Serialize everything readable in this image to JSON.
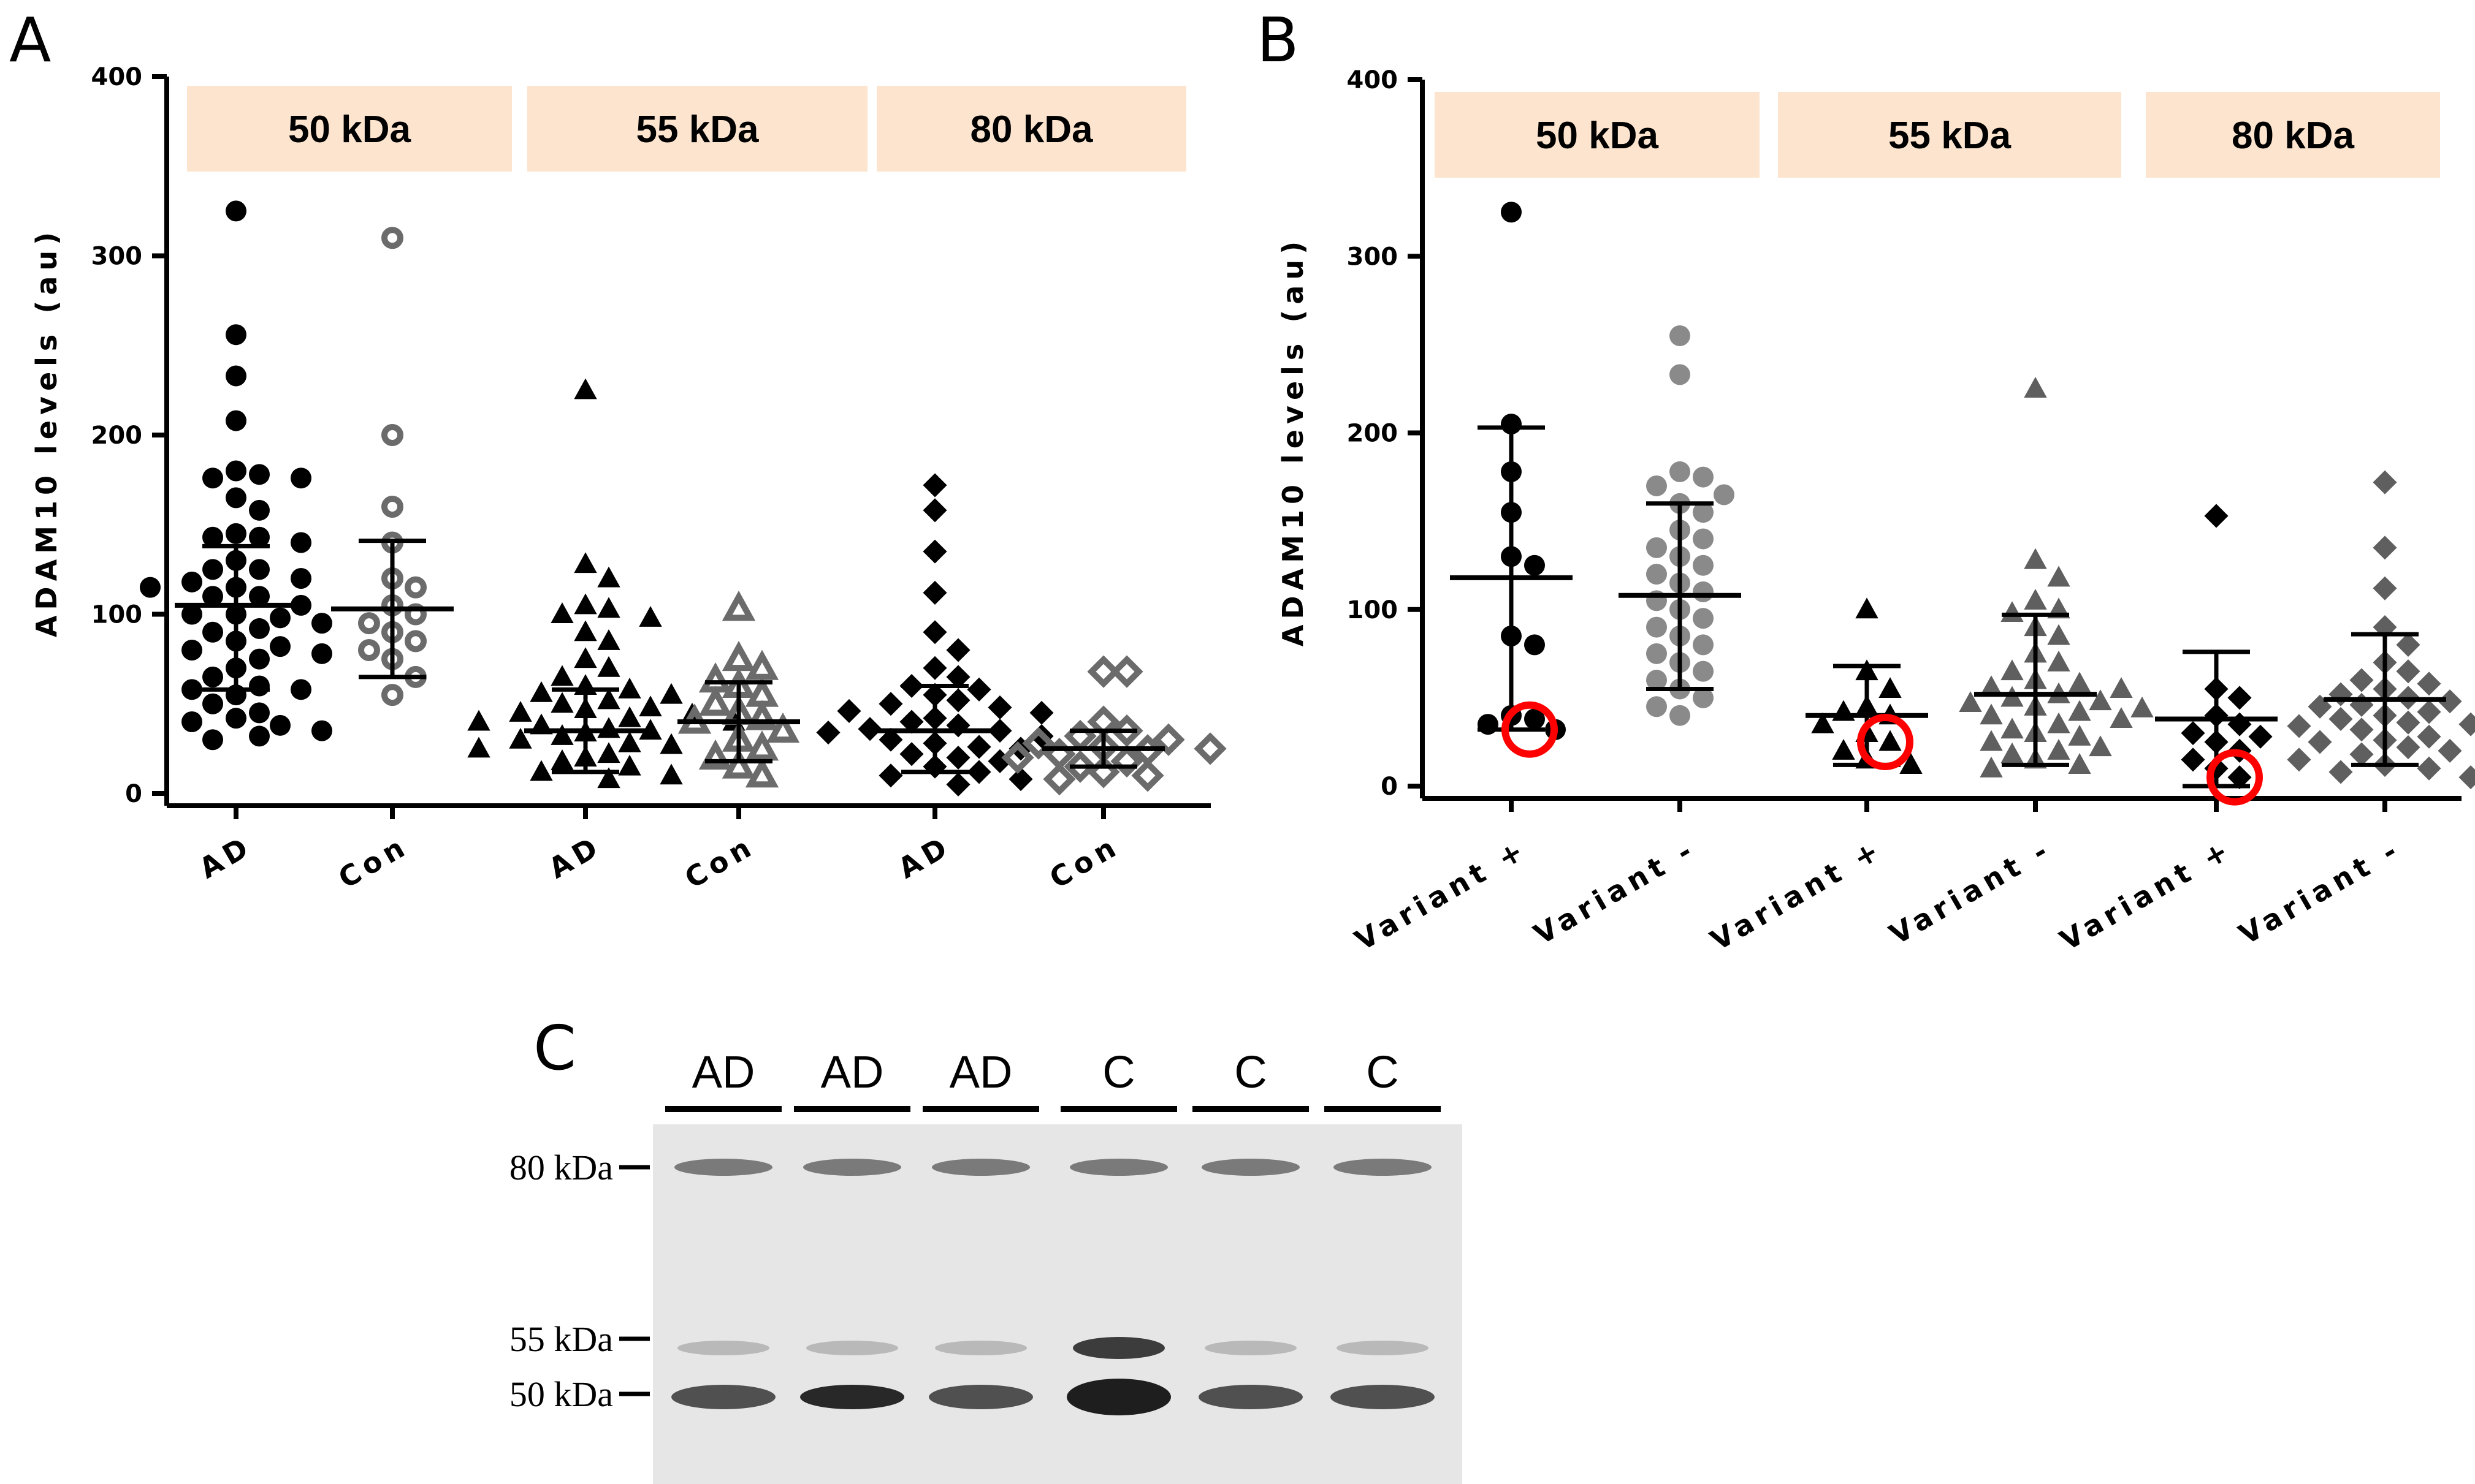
{
  "panels": {
    "A": {
      "letter": "A",
      "ylabel": "ADAM10 levels (au)"
    },
    "B": {
      "letter": "B",
      "ylabel": "ADAM10 levels (au)"
    },
    "C": {
      "letter": "C"
    }
  },
  "chart_data": [
    {
      "panel": "A",
      "type": "scatter",
      "ylabel": "ADAM10 levels (au)",
      "ylim": [
        0,
        400
      ],
      "yticks": [
        "0",
        "100",
        "200",
        "300",
        "400"
      ],
      "categories": [
        "AD",
        "Con",
        "AD",
        "Con",
        "AD",
        "Con"
      ],
      "band_groups": [
        "50 kDa",
        "55 kDa",
        "80 kDa"
      ],
      "band_color": "#fce4cf",
      "groups": [
        {
          "band": "50 kDa",
          "label": "AD",
          "marker": "circle",
          "fill": true,
          "color": "#000000",
          "mean": 105,
          "sd_low": 58,
          "sd_high": 138,
          "values": [
            325,
            256,
            233,
            208,
            180,
            178,
            176,
            176,
            165,
            158,
            145,
            143,
            143,
            140,
            130,
            125,
            125,
            120,
            118,
            115,
            115,
            110,
            110,
            105,
            100,
            100,
            98,
            95,
            92,
            90,
            85,
            82,
            80,
            78,
            75,
            70,
            65,
            60,
            58,
            58,
            55,
            50,
            45,
            42,
            40,
            38,
            35,
            32,
            30
          ]
        },
        {
          "band": "50 kDa",
          "label": "Con",
          "marker": "circle",
          "fill": false,
          "color": "#6b6b6b",
          "mean": 103,
          "sd_low": 65,
          "sd_high": 141,
          "values": [
            310,
            200,
            160,
            140,
            120,
            115,
            105,
            100,
            95,
            90,
            85,
            80,
            75,
            65,
            55
          ]
        },
        {
          "band": "55 kDa",
          "label": "AD",
          "marker": "triangle",
          "fill": true,
          "color": "#000000",
          "mean": 35,
          "sd_low": 12,
          "sd_high": 58,
          "values": [
            225,
            128,
            120,
            105,
            103,
            100,
            98,
            90,
            85,
            75,
            70,
            65,
            60,
            58,
            56,
            55,
            52,
            50,
            48,
            47,
            45,
            44,
            42,
            40,
            40,
            38,
            36,
            35,
            34,
            32,
            30,
            28,
            27,
            25,
            22,
            20,
            18,
            15,
            12,
            10,
            8
          ]
        },
        {
          "band": "55 kDa",
          "label": "Con",
          "marker": "triangle",
          "fill": false,
          "color": "#6b6b6b",
          "mean": 40,
          "sd_low": 18,
          "sd_high": 62,
          "values": [
            103,
            75,
            70,
            63,
            60,
            55,
            50,
            45,
            42,
            40,
            35,
            30,
            25,
            20,
            15,
            10
          ]
        },
        {
          "band": "80 kDa",
          "label": "AD",
          "marker": "diamond",
          "fill": true,
          "color": "#000000",
          "mean": 35,
          "sd_low": 12,
          "sd_high": 60,
          "values": [
            172,
            158,
            135,
            112,
            90,
            80,
            70,
            65,
            60,
            58,
            55,
            52,
            50,
            48,
            46,
            45,
            42,
            40,
            38,
            36,
            35,
            34,
            32,
            30,
            28,
            26,
            25,
            22,
            20,
            18,
            15,
            12,
            10,
            8,
            5
          ]
        },
        {
          "band": "80 kDa",
          "label": "Con",
          "marker": "diamond",
          "fill": false,
          "color": "#6b6b6b",
          "mean": 25,
          "sd_low": 15,
          "sd_high": 35,
          "values": [
            68,
            68,
            40,
            35,
            32,
            30,
            28,
            26,
            25,
            24,
            22,
            20,
            18,
            15,
            12,
            10,
            8
          ]
        }
      ]
    },
    {
      "panel": "B",
      "type": "scatter",
      "ylabel": "ADAM10 levels (au)",
      "ylim": [
        0,
        400
      ],
      "yticks": [
        "0",
        "100",
        "200",
        "300",
        "400"
      ],
      "categories": [
        "Variant +",
        "Variant -",
        "Variant +",
        "Variant -",
        "Variant +",
        "Variant -"
      ],
      "band_groups": [
        "50 kDa",
        "55 kDa",
        "80 kDa"
      ],
      "band_color": "#fce4cf",
      "highlight_color": "#ff0000",
      "groups": [
        {
          "band": "50 kDa",
          "label": "Variant +",
          "marker": "circle",
          "color": "#000000",
          "mean": 118,
          "sd_low": 32,
          "sd_high": 203,
          "highlight": 32,
          "values": [
            325,
            205,
            178,
            155,
            130,
            125,
            85,
            80,
            40,
            38,
            35,
            32
          ]
        },
        {
          "band": "50 kDa",
          "label": "Variant -",
          "marker": "circle",
          "color": "#8a8a8a",
          "mean": 108,
          "sd_low": 55,
          "sd_high": 160,
          "values": [
            255,
            233,
            178,
            175,
            170,
            165,
            160,
            155,
            145,
            140,
            135,
            130,
            125,
            120,
            115,
            110,
            105,
            100,
            95,
            90,
            85,
            80,
            75,
            70,
            65,
            60,
            55,
            50,
            45,
            40
          ]
        },
        {
          "band": "55 kDa",
          "label": "Variant +",
          "marker": "triangle",
          "color": "#000000",
          "mean": 40,
          "sd_low": 12,
          "sd_high": 68,
          "highlight": 25,
          "values": [
            100,
            65,
            55,
            45,
            42,
            40,
            35,
            30,
            25,
            20,
            15,
            12
          ]
        },
        {
          "band": "55 kDa",
          "label": "Variant -",
          "marker": "triangle",
          "color": "#5f5f5f",
          "mean": 52,
          "sd_low": 12,
          "sd_high": 97,
          "values": [
            225,
            128,
            118,
            105,
            100,
            98,
            90,
            85,
            75,
            70,
            65,
            60,
            58,
            56,
            55,
            52,
            50,
            48,
            47,
            45,
            44,
            42,
            40,
            38,
            35,
            32,
            30,
            28,
            25,
            22,
            20,
            18,
            15,
            12,
            10
          ]
        },
        {
          "band": "80 kDa",
          "label": "Variant +",
          "marker": "diamond",
          "color": "#000000",
          "mean": 38,
          "sd_low": 0,
          "sd_high": 76,
          "highlight": 5,
          "values": [
            153,
            55,
            50,
            40,
            35,
            30,
            28,
            25,
            20,
            15,
            10,
            5
          ]
        },
        {
          "band": "80 kDa",
          "label": "Variant -",
          "marker": "diamond",
          "color": "#5f5f5f",
          "mean": 49,
          "sd_low": 12,
          "sd_high": 86,
          "values": [
            172,
            135,
            112,
            90,
            80,
            70,
            65,
            60,
            58,
            55,
            52,
            50,
            48,
            46,
            45,
            42,
            40,
            38,
            36,
            35,
            34,
            32,
            30,
            28,
            26,
            25,
            22,
            20,
            18,
            15,
            12,
            10,
            8,
            5
          ]
        }
      ]
    }
  ],
  "blot": {
    "lanes": [
      "AD",
      "AD",
      "AD",
      "C",
      "C",
      "C"
    ],
    "markers": [
      "80 kDa",
      "55 kDa",
      "50 kDa"
    ],
    "background": "#e6e6e6",
    "band_color": "#1e1e1e"
  }
}
